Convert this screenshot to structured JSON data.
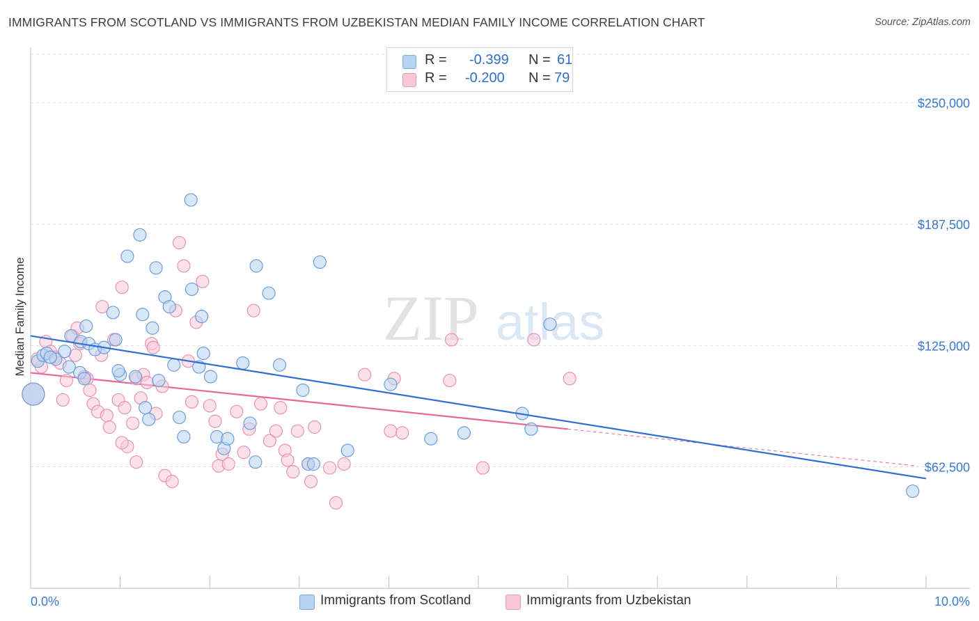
{
  "title": "IMMIGRANTS FROM SCOTLAND VS IMMIGRANTS FROM UZBEKISTAN MEDIAN FAMILY INCOME CORRELATION CHART",
  "source": "Source: ZipAtlas.com",
  "watermark": {
    "zip": "ZIP",
    "atlas": "atlas"
  },
  "legend": {
    "r_label": "R =",
    "n_label": "N =",
    "rows": [
      {
        "r": "-0.399",
        "n": "61",
        "color": "#4f8ad6"
      },
      {
        "r": "-0.200",
        "n": "79",
        "color": "#e8759f"
      }
    ]
  },
  "bottom_legend": [
    {
      "label": "Immigrants from Scotland"
    },
    {
      "label": "Immigrants from Uzbekistan"
    }
  ],
  "colors": {
    "blue_fill": "#b8d3f1",
    "blue_stroke": "#6b9ddb",
    "blue_line": "#2e6fd0",
    "pink_fill": "#f9c8d8",
    "pink_stroke": "#e593b2",
    "pink_line": "#e8679a",
    "axis_text": "#3b78c9",
    "grid": "#d9d9d9"
  },
  "chart_data": {
    "type": "scatter",
    "title": "IMMIGRANTS FROM SCOTLAND VS IMMIGRANTS FROM UZBEKISTAN MEDIAN FAMILY INCOME CORRELATION CHART",
    "xlabel": "",
    "ylabel": "Median Family Income",
    "xlim": [
      0,
      10
    ],
    "ylim": [
      0,
      275000
    ],
    "x_tick_labels": [
      "0.0%",
      "10.0%"
    ],
    "y_ticks": [
      62500,
      125000,
      187500,
      250000
    ],
    "y_tick_labels": [
      "$62,500",
      "$125,000",
      "$187,500",
      "$250,000"
    ],
    "grid": true,
    "series": [
      {
        "name": "Immigrants from Scotland",
        "color": "blue",
        "trend": {
          "x0": 0.0,
          "y0": 130000,
          "x1": 10.0,
          "y1": 56500,
          "dashed_from": null
        },
        "points": [
          [
            0.03,
            100000
          ],
          [
            0.08,
            117000
          ],
          [
            0.14,
            120000
          ],
          [
            0.18,
            121000
          ],
          [
            0.28,
            118000
          ],
          [
            0.38,
            122000
          ],
          [
            0.45,
            130000
          ],
          [
            0.43,
            114000
          ],
          [
            0.56,
            127000
          ],
          [
            0.55,
            111000
          ],
          [
            0.62,
            135000
          ],
          [
            0.65,
            126000
          ],
          [
            0.72,
            123000
          ],
          [
            0.82,
            124000
          ],
          [
            0.92,
            142000
          ],
          [
            0.95,
            128000
          ],
          [
            1.0,
            110000
          ],
          [
            1.08,
            171000
          ],
          [
            1.17,
            109000
          ],
          [
            1.22,
            182000
          ],
          [
            1.25,
            141000
          ],
          [
            1.28,
            93000
          ],
          [
            1.32,
            87000
          ],
          [
            1.36,
            134000
          ],
          [
            1.43,
            107000
          ],
          [
            1.4,
            165000
          ],
          [
            1.5,
            150000
          ],
          [
            1.55,
            145000
          ],
          [
            1.6,
            115000
          ],
          [
            1.66,
            88000
          ],
          [
            1.79,
            200000
          ],
          [
            1.8,
            154000
          ],
          [
            1.71,
            78000
          ],
          [
            1.88,
            114000
          ],
          [
            1.91,
            140000
          ],
          [
            1.93,
            121000
          ],
          [
            2.01,
            109000
          ],
          [
            2.08,
            78000
          ],
          [
            2.16,
            72000
          ],
          [
            2.2,
            77000
          ],
          [
            2.37,
            116000
          ],
          [
            2.45,
            85000
          ],
          [
            2.51,
            65000
          ],
          [
            2.52,
            166000
          ],
          [
            2.66,
            152000
          ],
          [
            2.78,
            115000
          ],
          [
            3.04,
            102000
          ],
          [
            3.1,
            64000
          ],
          [
            3.16,
            64000
          ],
          [
            3.23,
            168000
          ],
          [
            3.54,
            71000
          ],
          [
            4.02,
            105000
          ],
          [
            4.47,
            77000
          ],
          [
            4.84,
            80000
          ],
          [
            5.49,
            90000
          ],
          [
            5.59,
            82000
          ],
          [
            5.8,
            136000
          ],
          [
            9.85,
            50000
          ],
          [
            0.22,
            119000
          ],
          [
            0.98,
            112000
          ],
          [
            0.6,
            108000
          ]
        ]
      },
      {
        "name": "Immigrants from Uzbekistan",
        "color": "pink",
        "trend": {
          "x0": 0.0,
          "y0": 111000,
          "x1": 6.0,
          "y1": 82000,
          "dashed_from": 6.0,
          "x2": 9.9,
          "y2": 63000
        },
        "points": [
          [
            0.03,
            100000
          ],
          [
            0.07,
            118000
          ],
          [
            0.12,
            114000
          ],
          [
            0.17,
            127000
          ],
          [
            0.22,
            122000
          ],
          [
            0.27,
            119000
          ],
          [
            0.33,
            116000
          ],
          [
            0.4,
            107000
          ],
          [
            0.47,
            130000
          ],
          [
            0.5,
            120000
          ],
          [
            0.52,
            134000
          ],
          [
            0.55,
            126000
          ],
          [
            0.6,
            109000
          ],
          [
            0.63,
            108000
          ],
          [
            0.66,
            102000
          ],
          [
            0.7,
            95000
          ],
          [
            0.75,
            91000
          ],
          [
            0.8,
            145000
          ],
          [
            0.85,
            89000
          ],
          [
            0.93,
            128000
          ],
          [
            0.98,
            97000
          ],
          [
            1.02,
            155000
          ],
          [
            1.05,
            93000
          ],
          [
            1.08,
            73000
          ],
          [
            1.14,
            85000
          ],
          [
            1.18,
            108000
          ],
          [
            1.23,
            98000
          ],
          [
            1.26,
            110000
          ],
          [
            1.3,
            106000
          ],
          [
            1.35,
            126000
          ],
          [
            1.37,
            124000
          ],
          [
            1.4,
            90000
          ],
          [
            1.47,
            104000
          ],
          [
            1.5,
            58000
          ],
          [
            1.58,
            55000
          ],
          [
            1.62,
            143000
          ],
          [
            1.66,
            178000
          ],
          [
            1.71,
            166000
          ],
          [
            1.76,
            117000
          ],
          [
            1.8,
            96000
          ],
          [
            1.85,
            137000
          ],
          [
            1.92,
            158000
          ],
          [
            2.0,
            94000
          ],
          [
            2.06,
            86000
          ],
          [
            2.1,
            63000
          ],
          [
            2.14,
            69000
          ],
          [
            2.21,
            64000
          ],
          [
            2.3,
            91000
          ],
          [
            2.38,
            70000
          ],
          [
            2.44,
            82000
          ],
          [
            2.49,
            143000
          ],
          [
            2.57,
            95000
          ],
          [
            2.67,
            76000
          ],
          [
            2.74,
            81000
          ],
          [
            2.79,
            93000
          ],
          [
            2.84,
            71000
          ],
          [
            2.87,
            66000
          ],
          [
            2.93,
            60000
          ],
          [
            2.98,
            81000
          ],
          [
            3.1,
            64000
          ],
          [
            3.13,
            55000
          ],
          [
            3.17,
            83000
          ],
          [
            3.34,
            62000
          ],
          [
            3.41,
            44000
          ],
          [
            3.5,
            64000
          ],
          [
            3.73,
            110000
          ],
          [
            4.02,
            81000
          ],
          [
            4.06,
            108000
          ],
          [
            4.15,
            80000
          ],
          [
            4.68,
            107000
          ],
          [
            4.7,
            128000
          ],
          [
            5.05,
            62000
          ],
          [
            5.62,
            128000
          ],
          [
            6.02,
            108000
          ],
          [
            0.36,
            97000
          ],
          [
            0.79,
            120000
          ],
          [
            0.88,
            83000
          ],
          [
            1.02,
            75000
          ],
          [
            1.18,
            65000
          ]
        ]
      }
    ]
  }
}
